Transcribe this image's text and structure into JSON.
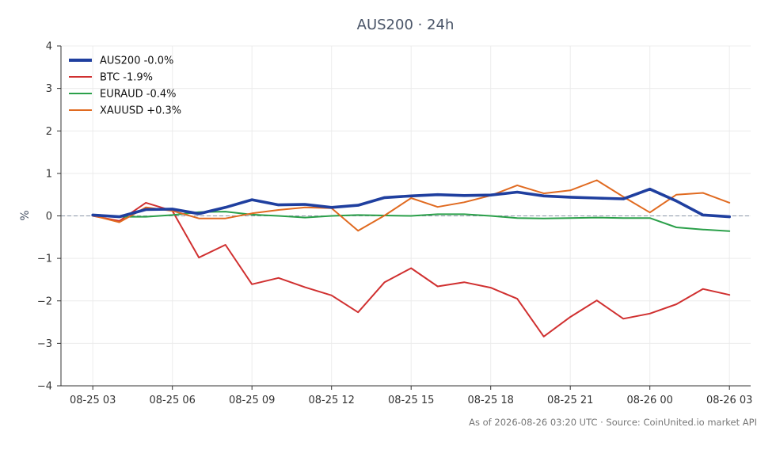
{
  "chart_data": {
    "type": "line",
    "title": "AUS200 · 24h",
    "xlabel": "",
    "ylabel": "%",
    "ylim": [
      -4,
      4
    ],
    "yticks": [
      -4,
      -3,
      -2,
      -1,
      0,
      1,
      2,
      3,
      4
    ],
    "ytick_labels": [
      "−4",
      "−3",
      "−2",
      "−1",
      "0",
      "1",
      "2",
      "3",
      "4"
    ],
    "x_index_range": [
      -1.2,
      24.8
    ],
    "xtick_positions": [
      0,
      3,
      6,
      9,
      12,
      15,
      18,
      21,
      24
    ],
    "xtick_labels": [
      "08-25 03",
      "08-25 06",
      "08-25 09",
      "08-25 12",
      "08-25 15",
      "08-25 18",
      "08-25 21",
      "08-26 00",
      "08-26 03"
    ],
    "grid": true,
    "zero_line": true,
    "legend_position": "top-left",
    "series": [
      {
        "name": "AUS200 -0.0%",
        "color": "#1f3f9f",
        "emphasis": true,
        "values": [
          0.02,
          -0.02,
          0.15,
          0.16,
          0.05,
          0.2,
          0.38,
          0.26,
          0.27,
          0.2,
          0.25,
          0.43,
          0.47,
          0.5,
          0.48,
          0.49,
          0.56,
          0.47,
          0.44,
          0.42,
          0.4,
          0.63,
          0.35,
          0.02,
          -0.02
        ]
      },
      {
        "name": "BTC -1.9%",
        "color": "#d03030",
        "emphasis": false,
        "values": [
          0.0,
          -0.12,
          0.31,
          0.12,
          -0.98,
          -0.68,
          -1.61,
          -1.46,
          -1.68,
          -1.87,
          -2.27,
          -1.56,
          -1.23,
          -1.66,
          -1.56,
          -1.69,
          -1.95,
          -2.84,
          -2.38,
          -1.99,
          -2.42,
          -2.3,
          -2.08,
          -1.72,
          -1.86
        ]
      },
      {
        "name": "EURAUD -0.4%",
        "color": "#2ba04a",
        "emphasis": false,
        "values": [
          0.02,
          -0.02,
          -0.02,
          0.02,
          0.09,
          0.1,
          0.03,
          0.0,
          -0.04,
          0.0,
          0.02,
          0.01,
          0.0,
          0.04,
          0.04,
          0.0,
          -0.05,
          -0.06,
          -0.05,
          -0.04,
          -0.05,
          -0.05,
          -0.27,
          -0.32,
          -0.36
        ]
      },
      {
        "name": "XAUUSD +0.3%",
        "color": "#e06a20",
        "emphasis": false,
        "values": [
          0.01,
          -0.15,
          0.2,
          0.12,
          -0.06,
          -0.06,
          0.06,
          0.14,
          0.2,
          0.18,
          -0.35,
          0.01,
          0.42,
          0.21,
          0.32,
          0.48,
          0.72,
          0.53,
          0.6,
          0.84,
          0.45,
          0.08,
          0.5,
          0.54,
          0.31
        ]
      }
    ],
    "footnote": "As of 2026-08-26 03:20 UTC · Source: CoinUnited.io market API"
  }
}
